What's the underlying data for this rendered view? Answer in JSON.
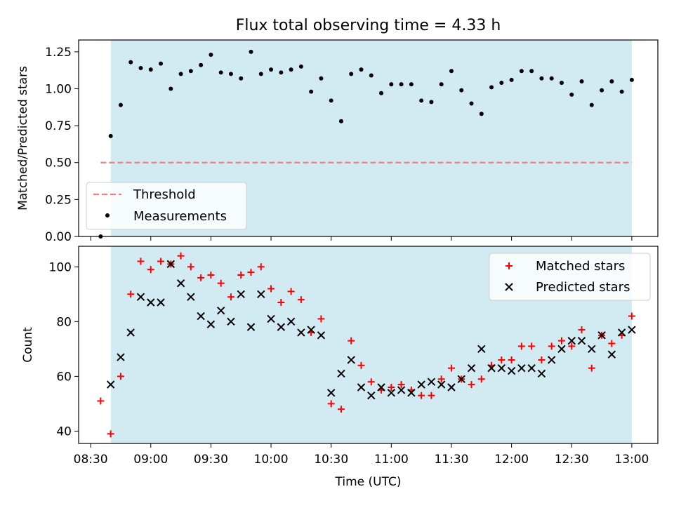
{
  "title": "Flux total observing time = 4.33 h",
  "colors": {
    "shade": "#add8e6",
    "threshold": "#f08080",
    "matched": "#ff0000",
    "predicted": "#000000",
    "measurement": "#000000"
  },
  "chart_data": [
    {
      "type": "scatter",
      "subplot": "top",
      "ylabel": "Matched/Predicted stars",
      "xlim": [
        "08:24",
        "13:13"
      ],
      "ylim": [
        0,
        1.33
      ],
      "yticks": [
        0.0,
        0.25,
        0.5,
        0.75,
        1.0,
        1.25
      ],
      "ytick_labels": [
        "0.00",
        "0.25",
        "0.50",
        "0.75",
        "1.00",
        "1.25"
      ],
      "shaded_interval": [
        "08:40",
        "13:00"
      ],
      "threshold": {
        "label": "Threshold",
        "y": 0.5,
        "x": [
          "08:35",
          "13:00"
        ],
        "style": "dashed"
      },
      "legend": {
        "position": "lower-left",
        "entries": [
          "Threshold",
          "Measurements"
        ]
      },
      "series": [
        {
          "name": "Measurements",
          "marker": "dot",
          "x": [
            "08:35",
            "08:40",
            "08:45",
            "08:50",
            "08:55",
            "09:00",
            "09:05",
            "09:10",
            "09:15",
            "09:20",
            "09:25",
            "09:30",
            "09:35",
            "09:40",
            "09:45",
            "09:50",
            "09:55",
            "10:00",
            "10:05",
            "10:10",
            "10:15",
            "10:20",
            "10:25",
            "10:30",
            "10:35",
            "10:40",
            "10:45",
            "10:50",
            "10:55",
            "11:00",
            "11:05",
            "11:10",
            "11:15",
            "11:20",
            "11:25",
            "11:30",
            "11:35",
            "11:40",
            "11:45",
            "11:50",
            "11:55",
            "12:00",
            "12:05",
            "12:10",
            "12:15",
            "12:20",
            "12:25",
            "12:30",
            "12:35",
            "12:40",
            "12:45",
            "12:50",
            "12:55",
            "13:00"
          ],
          "y": [
            0.0,
            0.68,
            0.89,
            1.18,
            1.14,
            1.13,
            1.17,
            1.0,
            1.1,
            1.12,
            1.16,
            1.23,
            1.11,
            1.1,
            1.07,
            1.25,
            1.1,
            1.13,
            1.11,
            1.13,
            1.15,
            0.98,
            1.07,
            0.92,
            0.78,
            1.1,
            1.13,
            1.09,
            0.97,
            1.03,
            1.03,
            1.03,
            0.92,
            0.91,
            1.03,
            1.12,
            0.99,
            0.9,
            0.83,
            1.01,
            1.04,
            1.06,
            1.12,
            1.12,
            1.07,
            1.07,
            1.04,
            0.96,
            1.05,
            0.89,
            0.99,
            1.05,
            0.98,
            1.06
          ]
        }
      ]
    },
    {
      "type": "scatter",
      "subplot": "bottom",
      "ylabel": "Count",
      "xlabel": "Time (UTC)",
      "xlim": [
        "08:24",
        "13:13"
      ],
      "ylim": [
        35.5,
        107.5
      ],
      "yticks": [
        40,
        60,
        80,
        100
      ],
      "ytick_labels": [
        "40",
        "60",
        "80",
        "100"
      ],
      "xticks": [
        "08:30",
        "09:00",
        "09:30",
        "10:00",
        "10:30",
        "11:00",
        "11:30",
        "12:00",
        "12:30",
        "13:00"
      ],
      "shaded_interval": [
        "08:40",
        "13:00"
      ],
      "legend": {
        "position": "top-right",
        "entries": [
          "Matched stars",
          "Predicted stars"
        ]
      },
      "x": [
        "08:35",
        "08:40",
        "08:45",
        "08:50",
        "08:55",
        "09:00",
        "09:05",
        "09:10",
        "09:15",
        "09:20",
        "09:25",
        "09:30",
        "09:35",
        "09:40",
        "09:45",
        "09:50",
        "09:55",
        "10:00",
        "10:05",
        "10:10",
        "10:15",
        "10:20",
        "10:25",
        "10:30",
        "10:35",
        "10:40",
        "10:45",
        "10:50",
        "10:55",
        "11:00",
        "11:05",
        "11:10",
        "11:15",
        "11:20",
        "11:25",
        "11:30",
        "11:35",
        "11:40",
        "11:45",
        "11:50",
        "11:55",
        "12:00",
        "12:05",
        "12:10",
        "12:15",
        "12:20",
        "12:25",
        "12:30",
        "12:35",
        "12:40",
        "12:45",
        "12:50",
        "12:55",
        "13:00"
      ],
      "series": [
        {
          "name": "Matched stars",
          "marker": "+",
          "y": [
            51,
            39,
            60,
            90,
            102,
            99,
            102,
            101,
            104,
            100,
            96,
            97,
            94,
            89,
            97,
            98,
            100,
            92,
            87,
            91,
            88,
            76,
            81,
            50,
            48,
            73,
            64,
            58,
            55,
            56,
            57,
            55,
            53,
            53,
            59,
            63,
            59,
            57,
            59,
            64,
            66,
            66,
            71,
            71,
            66,
            71,
            73,
            71,
            77,
            63,
            75,
            72,
            75,
            82
          ]
        },
        {
          "name": "Predicted stars",
          "marker": "x",
          "y": [
            null,
            57,
            67,
            76,
            89,
            87,
            87,
            101,
            94,
            89,
            82,
            79,
            84,
            80,
            90,
            78,
            90,
            81,
            78,
            80,
            76,
            77,
            75,
            54,
            61,
            66,
            56,
            53,
            56,
            54,
            55,
            54,
            57,
            58,
            57,
            56,
            59,
            63,
            70,
            63,
            63,
            62,
            63,
            63,
            61,
            66,
            70,
            73,
            73,
            70,
            75,
            68,
            76,
            77
          ]
        }
      ]
    }
  ]
}
